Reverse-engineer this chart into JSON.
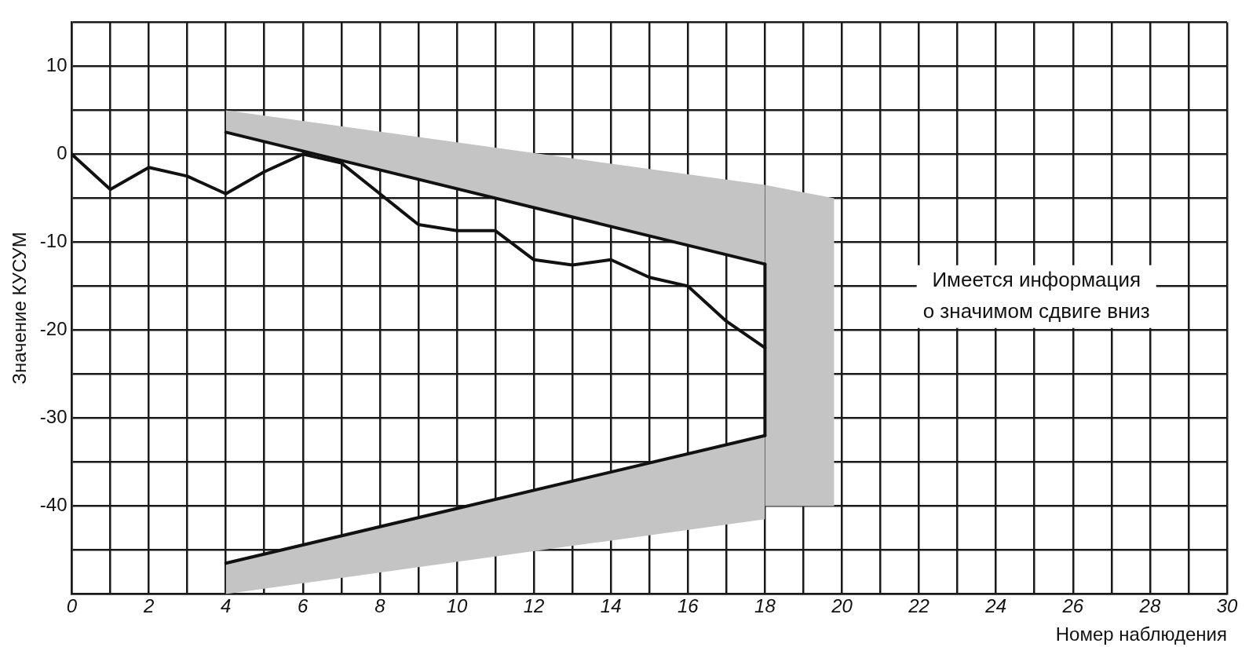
{
  "chart_data": {
    "type": "line",
    "xlabel": "Номер наблюдения",
    "ylabel": "Значение КУСУМ",
    "annotations": [
      "Имеется информация\nо значимом сдвиге вниз"
    ],
    "xlim": [
      0,
      30
    ],
    "xticks": [
      0,
      {
        "value": 1,
        "label": null
      },
      2,
      {
        "value": 3,
        "label": null
      },
      4,
      {
        "value": 5,
        "label": null
      },
      6,
      {
        "value": 7,
        "label": null
      },
      8,
      {
        "value": 9,
        "label": null
      },
      10,
      {
        "value": 11,
        "label": null
      },
      12,
      {
        "value": 13,
        "label": null
      },
      14,
      {
        "value": 15,
        "label": null
      },
      16,
      {
        "value": 17,
        "label": null
      },
      18,
      {
        "value": 19,
        "label": null
      },
      20,
      {
        "value": 21,
        "label": null
      },
      22,
      {
        "value": 23,
        "label": null
      },
      24,
      {
        "value": 25,
        "label": null
      },
      26,
      {
        "value": 27,
        "label": null
      },
      28,
      {
        "value": 29,
        "label": null
      },
      30
    ],
    "ylim": [
      -50,
      15
    ],
    "yticks": [
      {
        "value": -50,
        "label": null
      },
      {
        "value": -45,
        "label": null
      },
      -40,
      {
        "value": -35,
        "label": null
      },
      -30,
      {
        "value": -25,
        "label": null
      },
      -20,
      {
        "value": -15,
        "label": null
      },
      -10,
      {
        "value": -5,
        "label": null
      },
      0,
      {
        "value": 5,
        "label": null
      },
      10,
      {
        "value": 15,
        "label": null
      }
    ],
    "grid": true,
    "legend": false,
    "marker": "none",
    "line_style": "solid",
    "series": [
      {
        "color": "#111111",
        "x": [
          4,
          18
        ],
        "values": [
          2.5,
          -12.5
        ],
        "lower": [
          2.5,
          -12.5
        ],
        "upper": [
          5,
          -3.5
        ]
      },
      {
        "color": "#c4c4c4",
        "x": [
          18,
          19.8
        ],
        "values": [
          null,
          null
        ],
        "lower": [
          -40,
          -40
        ],
        "upper": [
          -3.5,
          -5
        ]
      },
      {
        "color": "#111111",
        "x": [
          4,
          18
        ],
        "values": [
          -46.5,
          -32
        ],
        "lower": [
          -50,
          -41.5
        ],
        "upper": [
          -46.5,
          -32
        ]
      },
      {
        "color": "#111111",
        "x": [
          18,
          18
        ],
        "values": [
          -12.5,
          -32
        ]
      },
      {
        "color": "#111111",
        "x": [
          0,
          1,
          2,
          3,
          4,
          5,
          6,
          7,
          8,
          9,
          10,
          11,
          12,
          13,
          14,
          15,
          16,
          17,
          18
        ],
        "values": [
          0,
          -4,
          -1.5,
          -2.5,
          -4.5,
          -2,
          0,
          -1,
          -4.5,
          -8,
          -8.7,
          -8.7,
          -12,
          -12.6,
          -12,
          -14,
          -15,
          -19,
          -22
        ]
      }
    ]
  }
}
